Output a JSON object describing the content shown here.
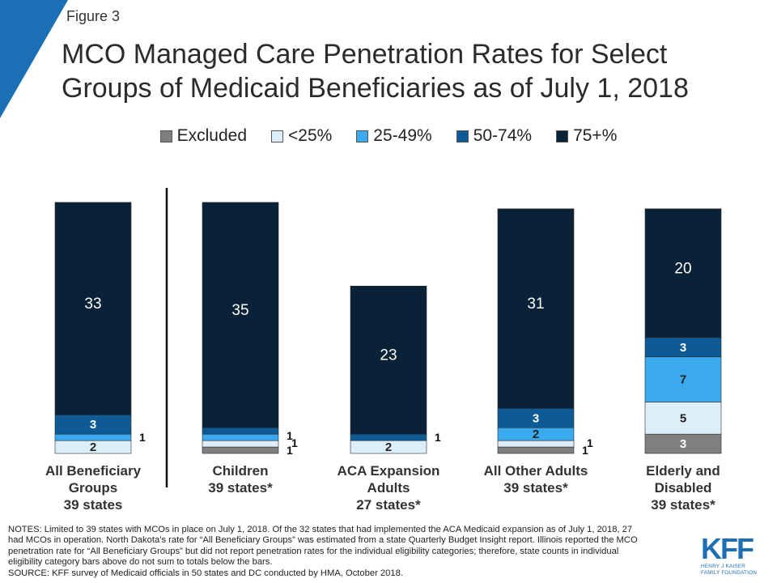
{
  "figure_label": "Figure 3",
  "title": "MCO Managed Care Penetration Rates for Select Groups of Medicaid Beneficiaries as of July 1, 2018",
  "colors": {
    "corner_accent": "#1a6fb5",
    "excluded": "#7f7f7f",
    "lt25": "#ddeefb",
    "p25_49": "#3aa9ee",
    "p50_74": "#0d5a94",
    "p75": "#0a2237",
    "divider": "#111111"
  },
  "chart_data": {
    "type": "bar",
    "stacked": true,
    "categories": [
      "All Beneficiary Groups 39 states",
      "Children 39 states*",
      "ACA Expansion Adults 27 states*",
      "All Other Adults 39 states*",
      "Elderly and Disabled 39 states*"
    ],
    "category_lines": [
      [
        "All Beneficiary",
        "Groups",
        "39 states"
      ],
      [
        "Children",
        "39 states*"
      ],
      [
        "ACA Expansion",
        "Adults",
        "27 states*"
      ],
      [
        "All Other Adults",
        "39 states*"
      ],
      [
        "Elderly and",
        "Disabled",
        "39 states*"
      ]
    ],
    "series": [
      {
        "name": "Excluded",
        "key": "excluded",
        "values": [
          0,
          1,
          0,
          1,
          3
        ]
      },
      {
        "name": "<25%",
        "key": "lt25",
        "values": [
          2,
          1,
          2,
          1,
          5
        ]
      },
      {
        "name": "25-49%",
        "key": "p25_49",
        "values": [
          1,
          1,
          0,
          2,
          7
        ]
      },
      {
        "name": "50-74%",
        "key": "p50_74",
        "values": [
          3,
          1,
          1,
          3,
          3
        ]
      },
      {
        "name": "75+%",
        "key": "p75",
        "values": [
          33,
          35,
          23,
          31,
          20
        ]
      }
    ],
    "data_labels": {
      "inside": [
        [
          "",
          "",
          "",
          "",
          "3"
        ],
        [
          "2",
          "",
          "2",
          "",
          "5"
        ],
        [
          "",
          "",
          "",
          "2",
          "7"
        ],
        [
          "3",
          "",
          "",
          "3",
          "3"
        ],
        [
          "33",
          "35",
          "23",
          "31",
          "20"
        ]
      ],
      "outside": [
        [
          "",
          "1",
          "",
          "1",
          ""
        ],
        [
          "",
          "1",
          "",
          "1",
          ""
        ],
        [
          "1",
          "1",
          "",
          "",
          ""
        ],
        [
          "",
          "",
          "1",
          "",
          ""
        ],
        [
          "",
          "",
          "",
          "",
          ""
        ]
      ]
    },
    "legend_position": "top-center",
    "grid": false
  },
  "notes": [
    "NOTES: Limited to 39 states with MCOs in place on July 1, 2018. Of the 32 states that had implemented the ACA Medicaid expansion as of July 1, 2018, 27",
    "had MCOs in operation. North Dakota’s rate for “All Beneficiary Groups” was estimated from a state Quarterly Budget Insight report. Illinois reported the MCO",
    "penetration rate for “All Beneficiary Groups” but did not report penetration rates for the individual eligibility categories; therefore, state counts in individual",
    "eligibility category bars above do not sum to totals below the bars.",
    "SOURCE: KFF survey of Medicaid officials in 50 states and DC conducted by HMA, October 2018."
  ],
  "logo": {
    "mark": "KFF",
    "sub_lines": [
      "HENRY J KAISER",
      "FAMILY FOUNDATION"
    ]
  }
}
